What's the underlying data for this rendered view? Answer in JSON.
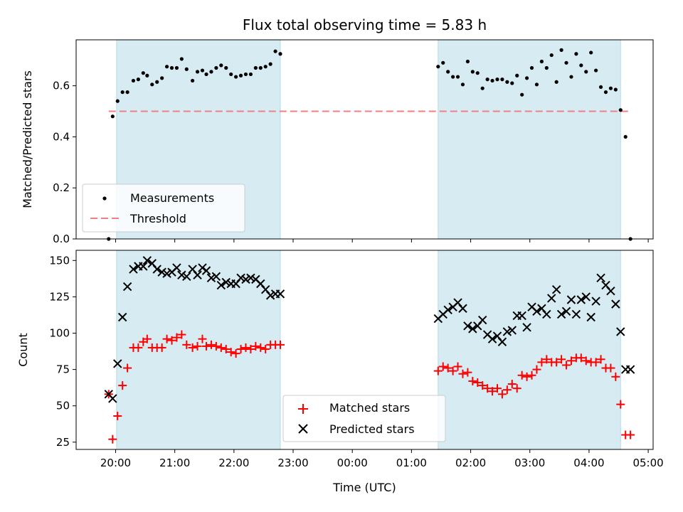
{
  "chart_data": [
    {
      "type": "scatter",
      "title": "Flux total observing time = 5.83 h",
      "xlabel": "",
      "ylabel": "Matched/Predicted stars",
      "ylim": [
        0,
        0.78
      ],
      "yticks": [
        0.0,
        0.2,
        0.4,
        0.6
      ],
      "ytick_labels": [
        "0.0",
        "0.2",
        "0.4",
        "0.6"
      ],
      "legend": {
        "placement": "lower-left",
        "entries": [
          "Measurements",
          "Threshold"
        ]
      },
      "threshold": {
        "name": "Threshold",
        "value": 0.5,
        "x_range": [
          "19:53",
          "04:43"
        ],
        "color": "#f08080"
      },
      "shaded_regions": [
        [
          "20:01",
          "22:47"
        ],
        [
          "01:27",
          "04:32"
        ]
      ],
      "series": [
        {
          "name": "Measurements",
          "color": "#000000",
          "x": [
            "19:53",
            "19:57",
            "20:02",
            "20:07",
            "20:12",
            "20:18",
            "20:23",
            "20:28",
            "20:32",
            "20:37",
            "20:42",
            "20:47",
            "20:52",
            "20:57",
            "21:02",
            "21:07",
            "21:12",
            "21:18",
            "21:23",
            "21:28",
            "21:32",
            "21:37",
            "21:42",
            "21:47",
            "21:52",
            "21:57",
            "22:02",
            "22:07",
            "22:12",
            "22:17",
            "22:22",
            "22:27",
            "22:32",
            "22:37",
            "22:42",
            "22:47",
            "01:27",
            "01:32",
            "01:37",
            "01:42",
            "01:47",
            "01:52",
            "01:57",
            "02:02",
            "02:07",
            "02:12",
            "02:17",
            "02:22",
            "02:27",
            "02:32",
            "02:37",
            "02:42",
            "02:47",
            "02:52",
            "02:57",
            "03:02",
            "03:07",
            "03:12",
            "03:17",
            "03:22",
            "03:27",
            "03:32",
            "03:37",
            "03:42",
            "03:47",
            "03:52",
            "03:57",
            "04:02",
            "04:07",
            "04:12",
            "04:17",
            "04:22",
            "04:27",
            "04:32",
            "04:37",
            "04:42"
          ],
          "y": [
            0.0,
            0.48,
            0.54,
            0.575,
            0.575,
            0.62,
            0.625,
            0.65,
            0.64,
            0.605,
            0.615,
            0.63,
            0.675,
            0.67,
            0.67,
            0.705,
            0.665,
            0.62,
            0.655,
            0.66,
            0.645,
            0.655,
            0.67,
            0.68,
            0.67,
            0.645,
            0.635,
            0.64,
            0.645,
            0.645,
            0.67,
            0.67,
            0.675,
            0.685,
            0.735,
            0.725,
            0.675,
            0.69,
            0.655,
            0.635,
            0.635,
            0.605,
            0.695,
            0.655,
            0.65,
            0.59,
            0.625,
            0.62,
            0.625,
            0.625,
            0.615,
            0.61,
            0.64,
            0.565,
            0.63,
            0.67,
            0.605,
            0.695,
            0.67,
            0.72,
            0.615,
            0.74,
            0.69,
            0.635,
            0.725,
            0.68,
            0.655,
            0.73,
            0.66,
            0.595,
            0.575,
            0.59,
            0.585,
            0.505,
            0.4,
            0.0
          ]
        }
      ]
    },
    {
      "type": "scatter",
      "title": "",
      "xlabel": "Time (UTC)",
      "ylabel": "Count",
      "ylim": [
        20,
        157
      ],
      "yticks": [
        25,
        50,
        75,
        100,
        125,
        150
      ],
      "ytick_labels": [
        "25",
        "50",
        "75",
        "100",
        "125",
        "150"
      ],
      "xticks": [
        "20:00",
        "21:00",
        "22:00",
        "23:00",
        "00:00",
        "01:00",
        "02:00",
        "03:00",
        "04:00",
        "05:00"
      ],
      "xlim_hours": [
        -0.667,
        9.083
      ],
      "legend": {
        "placement": "lower-center",
        "entries": [
          "Matched stars",
          "Predicted stars"
        ]
      },
      "shaded_regions": [
        [
          "20:01",
          "22:47"
        ],
        [
          "01:27",
          "04:32"
        ]
      ],
      "series": [
        {
          "name": "Matched stars",
          "marker": "plus",
          "color": "#ff0000",
          "x": [
            "19:53",
            "19:57",
            "20:02",
            "20:07",
            "20:12",
            "20:18",
            "20:23",
            "20:28",
            "20:32",
            "20:37",
            "20:42",
            "20:47",
            "20:52",
            "20:57",
            "21:02",
            "21:07",
            "21:12",
            "21:18",
            "21:23",
            "21:28",
            "21:32",
            "21:37",
            "21:42",
            "21:47",
            "21:52",
            "21:57",
            "22:02",
            "22:07",
            "22:12",
            "22:17",
            "22:22",
            "22:27",
            "22:32",
            "22:37",
            "22:42",
            "22:47",
            "01:27",
            "01:32",
            "01:37",
            "01:42",
            "01:47",
            "01:52",
            "01:57",
            "02:02",
            "02:07",
            "02:12",
            "02:17",
            "02:22",
            "02:27",
            "02:32",
            "02:37",
            "02:42",
            "02:47",
            "02:52",
            "02:57",
            "03:02",
            "03:07",
            "03:12",
            "03:17",
            "03:22",
            "03:27",
            "03:32",
            "03:37",
            "03:42",
            "03:47",
            "03:52",
            "03:57",
            "04:02",
            "04:07",
            "04:12",
            "04:17",
            "04:22",
            "04:27",
            "04:32",
            "04:37",
            "04:42"
          ],
          "y": [
            58,
            27,
            43,
            64,
            76,
            90,
            90,
            94,
            96,
            90,
            90,
            90,
            96,
            95,
            97,
            99,
            92,
            90,
            91,
            96,
            91,
            92,
            91,
            90,
            89,
            87,
            86,
            89,
            90,
            89,
            91,
            90,
            89,
            92,
            92,
            92,
            74,
            77,
            76,
            74,
            77,
            72,
            73,
            67,
            66,
            64,
            62,
            60,
            62,
            58,
            61,
            65,
            62,
            71,
            70,
            71,
            75,
            80,
            82,
            80,
            80,
            82,
            78,
            81,
            83,
            83,
            81,
            80,
            80,
            82,
            76,
            76,
            70,
            51,
            30,
            30
          ]
        },
        {
          "name": "Predicted stars",
          "marker": "x",
          "color": "#000000",
          "x": [
            "19:53",
            "19:57",
            "20:02",
            "20:07",
            "20:12",
            "20:18",
            "20:23",
            "20:28",
            "20:32",
            "20:37",
            "20:42",
            "20:47",
            "20:52",
            "20:57",
            "21:02",
            "21:07",
            "21:12",
            "21:18",
            "21:23",
            "21:28",
            "21:32",
            "21:37",
            "21:42",
            "21:47",
            "21:52",
            "21:57",
            "22:02",
            "22:07",
            "22:12",
            "22:17",
            "22:22",
            "22:27",
            "22:32",
            "22:37",
            "22:42",
            "22:47",
            "01:27",
            "01:32",
            "01:37",
            "01:42",
            "01:47",
            "01:52",
            "01:57",
            "02:02",
            "02:07",
            "02:12",
            "02:17",
            "02:22",
            "02:27",
            "02:32",
            "02:37",
            "02:42",
            "02:47",
            "02:52",
            "02:57",
            "03:02",
            "03:07",
            "03:12",
            "03:17",
            "03:22",
            "03:27",
            "03:32",
            "03:37",
            "03:42",
            "03:47",
            "03:52",
            "03:57",
            "04:02",
            "04:07",
            "04:12",
            "04:17",
            "04:22",
            "04:27",
            "04:32",
            "04:37",
            "04:42"
          ],
          "y": [
            58,
            55,
            79,
            111,
            132,
            144,
            146,
            146,
            150,
            148,
            144,
            142,
            141,
            142,
            145,
            140,
            139,
            144,
            140,
            145,
            143,
            138,
            139,
            133,
            135,
            134,
            134,
            138,
            137,
            138,
            137,
            134,
            130,
            126,
            127,
            127,
            110,
            113,
            116,
            118,
            121,
            117,
            105,
            103,
            105,
            109,
            99,
            96,
            98,
            94,
            101,
            102,
            112,
            112,
            104,
            118,
            115,
            117,
            113,
            124,
            130,
            113,
            115,
            123,
            113,
            123,
            125,
            111,
            122,
            138,
            133,
            129,
            120,
            101,
            75,
            75
          ]
        }
      ]
    }
  ]
}
